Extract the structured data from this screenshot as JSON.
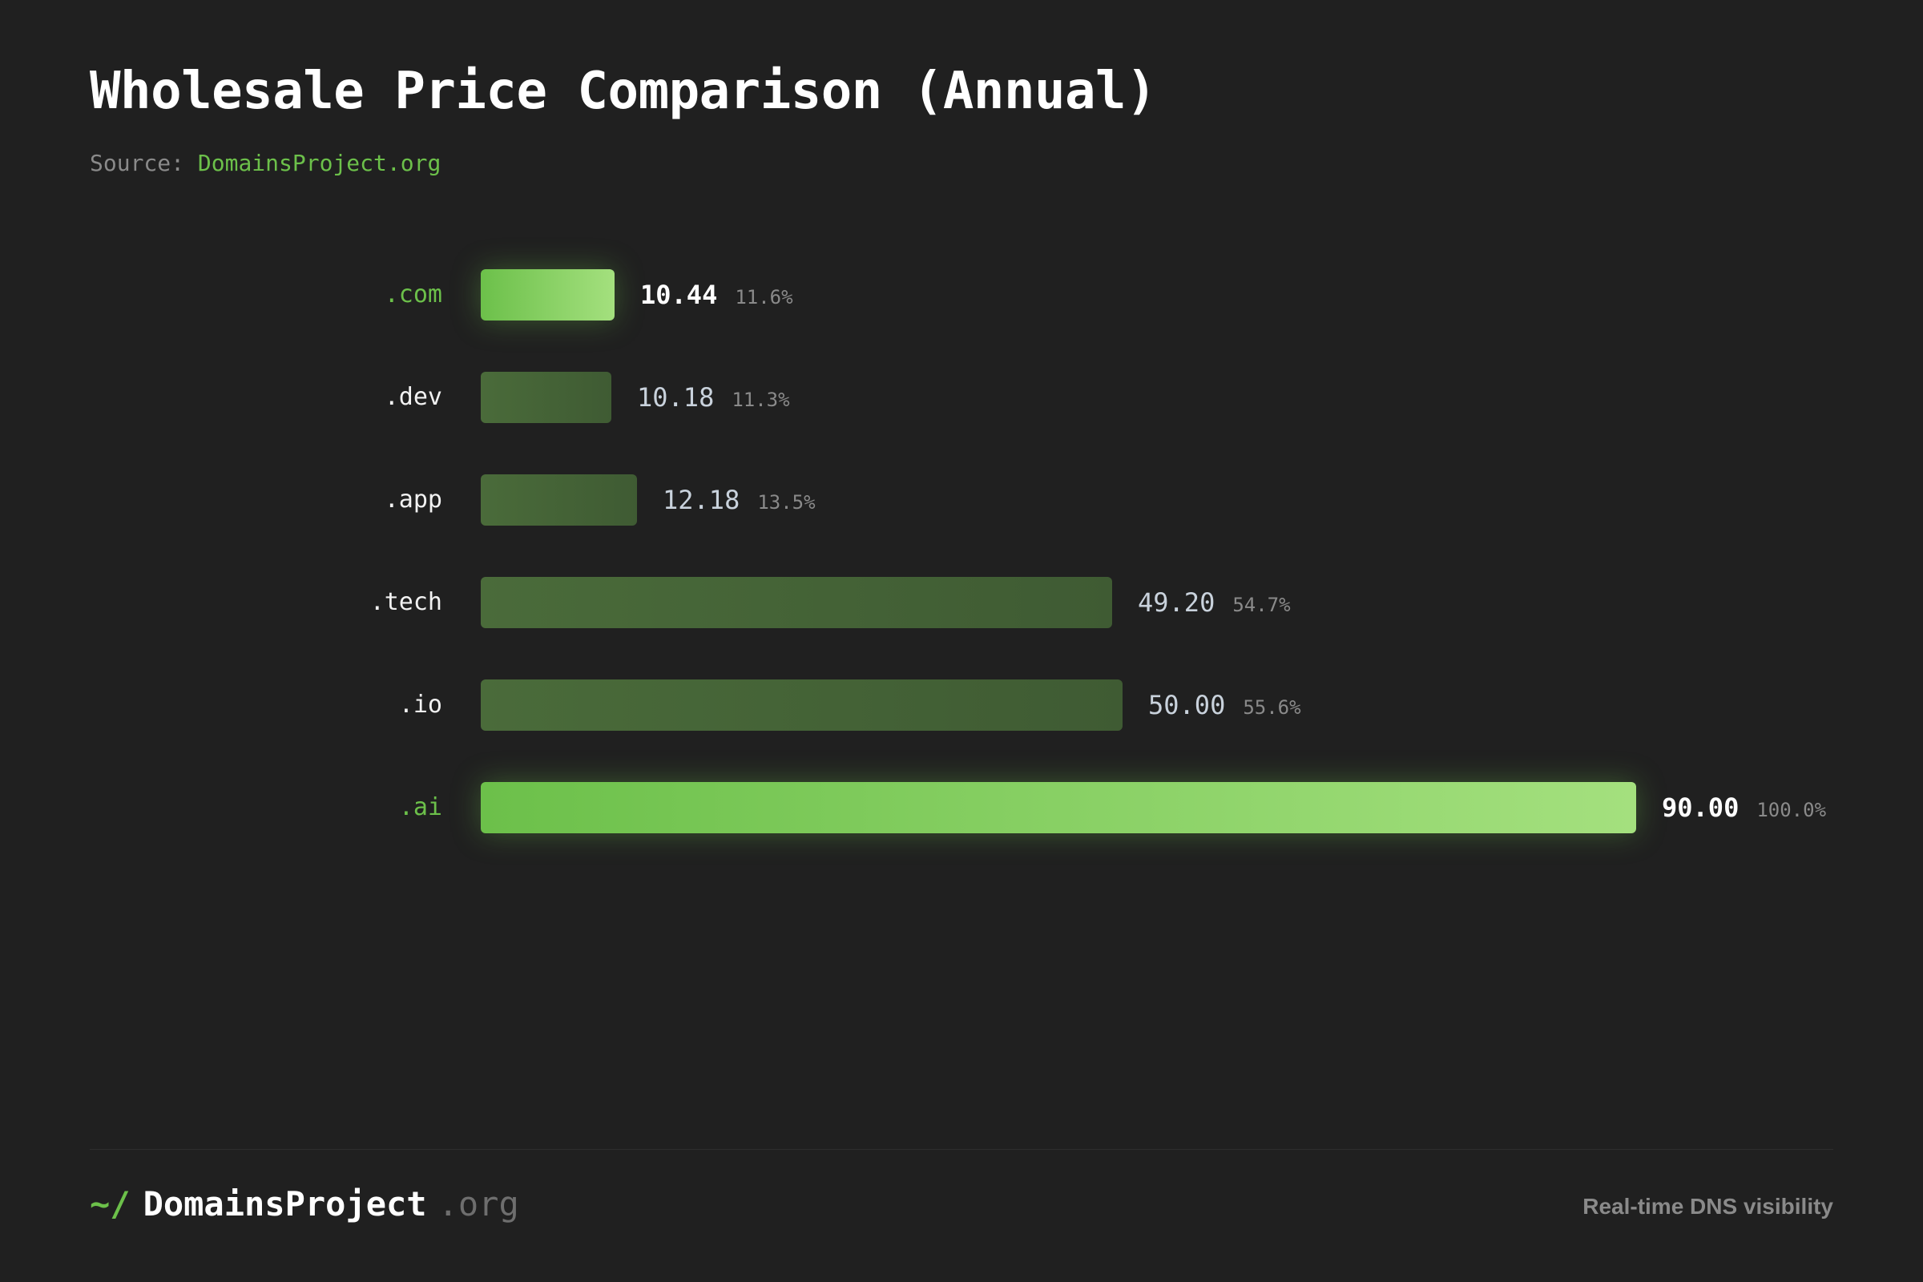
{
  "header": {
    "title": "Wholesale Price Comparison (Annual)",
    "source_label": "Source:",
    "source_link": "DomainsProject.org"
  },
  "chart_data": {
    "type": "bar",
    "orientation": "horizontal",
    "title": "Wholesale Price Comparison (Annual)",
    "categories": [
      ".com",
      ".dev",
      ".app",
      ".tech",
      ".io",
      ".ai"
    ],
    "values": [
      10.44,
      10.18,
      12.18,
      49.2,
      50.0,
      90.0
    ],
    "value_labels": [
      "10.44",
      "10.18",
      "12.18",
      "49.20",
      "50.00",
      "90.00"
    ],
    "percent_labels": [
      "11.6%",
      "11.3%",
      "13.5%",
      "54.7%",
      "55.6%",
      "100.0%"
    ],
    "highlighted": [
      true,
      false,
      false,
      false,
      false,
      true
    ],
    "xlim": [
      0,
      90
    ],
    "xlabel": "",
    "ylabel": "",
    "grid": false,
    "legend": "none",
    "colors": {
      "highlight_start": "#6cc04a",
      "highlight_end": "#a4e07e",
      "normal_start": "#4a6b3a",
      "normal_end": "#3f5b33"
    }
  },
  "footer": {
    "prompt": "~/",
    "brand_name": "DomainsProject",
    "brand_tld": ".org",
    "tagline": "Real-time DNS visibility"
  }
}
